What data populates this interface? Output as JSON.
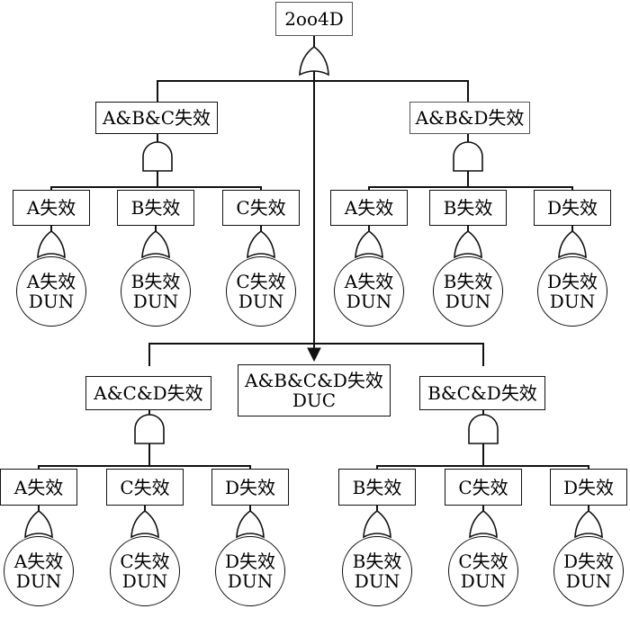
{
  "top_event": "2oo4D",
  "groups": [
    {
      "label": "A&B&C失效",
      "events": [
        {
          "label": "A失效",
          "cause": [
            "A失效",
            "DUN"
          ]
        },
        {
          "label": "B失效",
          "cause": [
            "B失效",
            "DUN"
          ]
        },
        {
          "label": "C失效",
          "cause": [
            "C失效",
            "DUN"
          ]
        }
      ]
    },
    {
      "label": "A&B&D失效",
      "events": [
        {
          "label": "A失效",
          "cause": [
            "A失效",
            "DUN"
          ]
        },
        {
          "label": "B失效",
          "cause": [
            "B失效",
            "DUN"
          ]
        },
        {
          "label": "D失效",
          "cause": [
            "D失效",
            "DUN"
          ]
        }
      ]
    },
    {
      "label": "A&C&D失效",
      "events": [
        {
          "label": "A失效",
          "cause": [
            "A失效",
            "DUN"
          ]
        },
        {
          "label": "C失效",
          "cause": [
            "C失效",
            "DUN"
          ]
        },
        {
          "label": "D失效",
          "cause": [
            "D失效",
            "DUN"
          ]
        }
      ]
    },
    {
      "label": "B&C&D失效",
      "events": [
        {
          "label": "B失效",
          "cause": [
            "B失效",
            "DUN"
          ]
        },
        {
          "label": "C失效",
          "cause": [
            "C失效",
            "DUN"
          ]
        },
        {
          "label": "D失效",
          "cause": [
            "D失效",
            "DUN"
          ]
        }
      ]
    }
  ],
  "common_cause": [
    "A&B&C&D失效",
    "DUC"
  ],
  "gate_types": {
    "top": "or",
    "group": "and",
    "event": "or"
  }
}
